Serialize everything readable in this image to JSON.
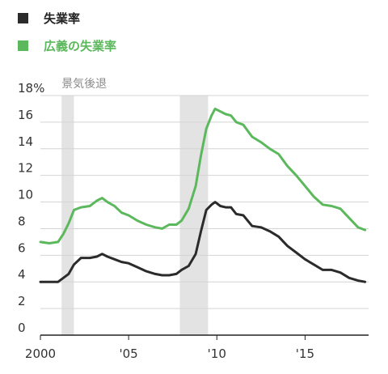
{
  "chart_data": {
    "type": "line",
    "legend": [
      {
        "name": "失業率",
        "color": "#2b2b2b"
      },
      {
        "name": "広義の失業率",
        "color": "#5cb85c"
      }
    ],
    "yunit": "%",
    "ylim": [
      0,
      18
    ],
    "yticks": [
      0,
      2,
      4,
      6,
      8,
      10,
      12,
      14,
      16,
      18
    ],
    "ytick_labels": [
      "0",
      "2",
      "4",
      "6",
      "8",
      "10",
      "12",
      "14",
      "16",
      "18%"
    ],
    "xlim": [
      2000,
      2018.6
    ],
    "xticks": [
      2000,
      2005,
      2010,
      2015
    ],
    "xtick_labels": [
      "2000",
      "'05",
      "'10",
      "'15"
    ],
    "recession_label": "景気後退",
    "recessions": [
      [
        2001.2,
        2001.9
      ],
      [
        2007.9,
        2009.5
      ]
    ],
    "series": [
      {
        "name": "失業率",
        "color": "#2b2b2b",
        "x": [
          2000.0,
          2000.5,
          2001.0,
          2001.3,
          2001.6,
          2001.9,
          2002.3,
          2002.8,
          2003.2,
          2003.5,
          2003.8,
          2004.2,
          2004.6,
          2005.0,
          2005.5,
          2006.0,
          2006.5,
          2006.9,
          2007.3,
          2007.7,
          2008.0,
          2008.4,
          2008.8,
          2009.1,
          2009.4,
          2009.7,
          2009.9,
          2010.2,
          2010.5,
          2010.8,
          2011.1,
          2011.5,
          2012.0,
          2012.5,
          2013.0,
          2013.5,
          2014.0,
          2014.5,
          2015.0,
          2015.5,
          2016.0,
          2016.5,
          2017.0,
          2017.5,
          2018.0,
          2018.4
        ],
        "y": [
          4.0,
          4.0,
          4.0,
          4.3,
          4.6,
          5.3,
          5.8,
          5.8,
          5.9,
          6.1,
          5.9,
          5.7,
          5.5,
          5.4,
          5.1,
          4.8,
          4.6,
          4.5,
          4.5,
          4.6,
          4.9,
          5.2,
          6.1,
          7.8,
          9.4,
          9.8,
          10.0,
          9.7,
          9.6,
          9.6,
          9.1,
          9.0,
          8.2,
          8.1,
          7.8,
          7.4,
          6.7,
          6.2,
          5.7,
          5.3,
          4.9,
          4.9,
          4.7,
          4.3,
          4.1,
          4.0
        ]
      },
      {
        "name": "広義の失業率",
        "color": "#5cb85c",
        "x": [
          2000.0,
          2000.5,
          2001.0,
          2001.3,
          2001.6,
          2001.9,
          2002.3,
          2002.8,
          2003.2,
          2003.5,
          2003.8,
          2004.2,
          2004.6,
          2005.0,
          2005.5,
          2006.0,
          2006.5,
          2006.9,
          2007.3,
          2007.7,
          2008.0,
          2008.4,
          2008.8,
          2009.1,
          2009.4,
          2009.7,
          2009.9,
          2010.2,
          2010.5,
          2010.8,
          2011.1,
          2011.5,
          2012.0,
          2012.5,
          2013.0,
          2013.5,
          2014.0,
          2014.5,
          2015.0,
          2015.5,
          2016.0,
          2016.5,
          2017.0,
          2017.5,
          2018.0,
          2018.4
        ],
        "y": [
          7.0,
          6.9,
          7.0,
          7.6,
          8.4,
          9.4,
          9.6,
          9.7,
          10.1,
          10.3,
          10.0,
          9.7,
          9.2,
          9.0,
          8.6,
          8.3,
          8.1,
          8.0,
          8.3,
          8.3,
          8.6,
          9.5,
          11.2,
          13.5,
          15.5,
          16.5,
          17.0,
          16.8,
          16.6,
          16.5,
          16.0,
          15.8,
          14.9,
          14.5,
          14.0,
          13.6,
          12.7,
          12.0,
          11.2,
          10.4,
          9.8,
          9.7,
          9.5,
          8.8,
          8.1,
          7.9
        ]
      }
    ]
  }
}
